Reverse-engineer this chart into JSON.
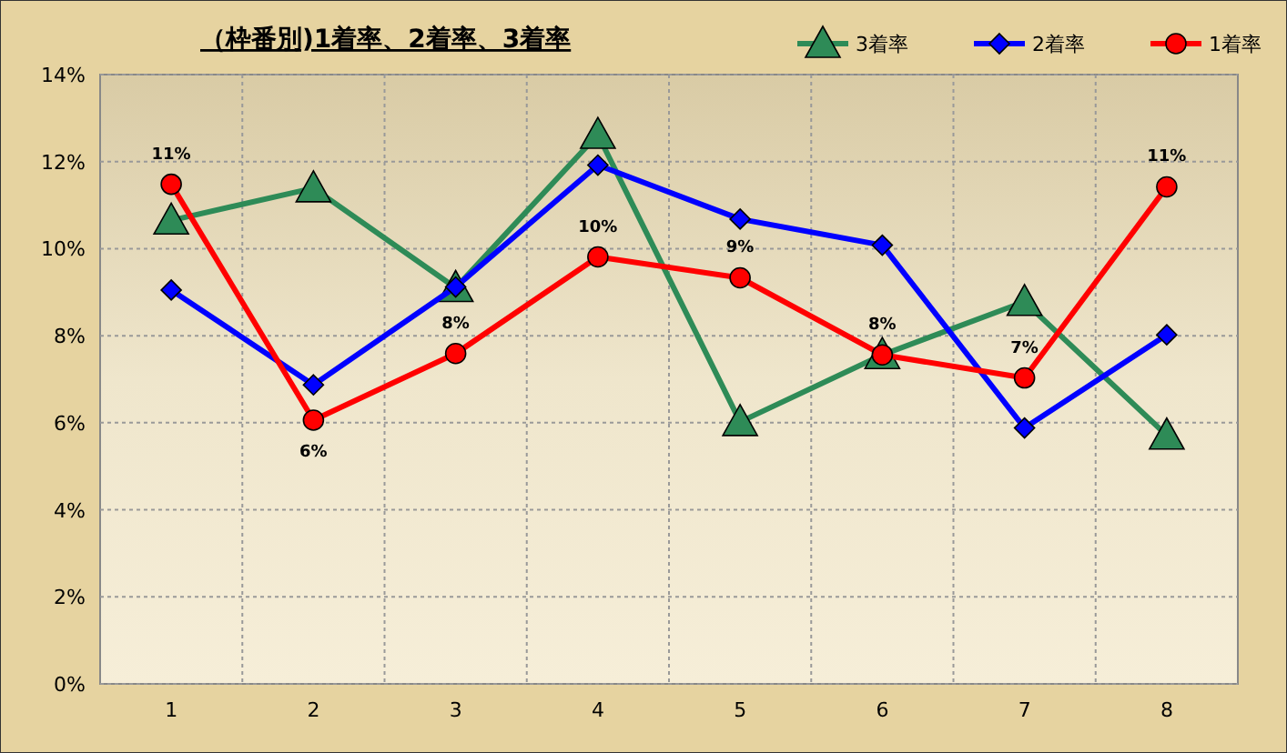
{
  "chart_data": {
    "type": "line",
    "title": "（枠番別)1着率、2着率、3着率",
    "categories": [
      "1",
      "2",
      "3",
      "4",
      "5",
      "6",
      "7",
      "8"
    ],
    "series": [
      {
        "name": "3着率",
        "color": "#2e8b57",
        "marker": "triangle",
        "values": [
          10.65,
          11.39,
          9.1,
          12.62,
          6.02,
          7.56,
          8.78,
          5.71
        ]
      },
      {
        "name": "2着率",
        "color": "#0000ff",
        "marker": "diamond",
        "values": [
          9.05,
          6.87,
          9.12,
          11.92,
          10.68,
          10.08,
          5.88,
          8.02
        ]
      },
      {
        "name": "1着率",
        "color": "#ff0000",
        "marker": "circle",
        "values": [
          11.48,
          6.06,
          7.59,
          9.81,
          9.33,
          7.56,
          7.03,
          11.42
        ],
        "value_labels": [
          "11%",
          "6%",
          "8%",
          "10%",
          "9%",
          "8%",
          "7%",
          "11%"
        ]
      }
    ],
    "ylim": [
      0,
      14
    ],
    "yticks": [
      {
        "value": 0,
        "label": "0%"
      },
      {
        "value": 2,
        "label": "2%"
      },
      {
        "value": 4,
        "label": "4%"
      },
      {
        "value": 6,
        "label": "6%"
      },
      {
        "value": 8,
        "label": "8%"
      },
      {
        "value": 10,
        "label": "10%"
      },
      {
        "value": 12,
        "label": "12%"
      },
      {
        "value": 14,
        "label": "14%"
      }
    ],
    "grid": true,
    "legend": "top right",
    "line_style": "solid"
  }
}
